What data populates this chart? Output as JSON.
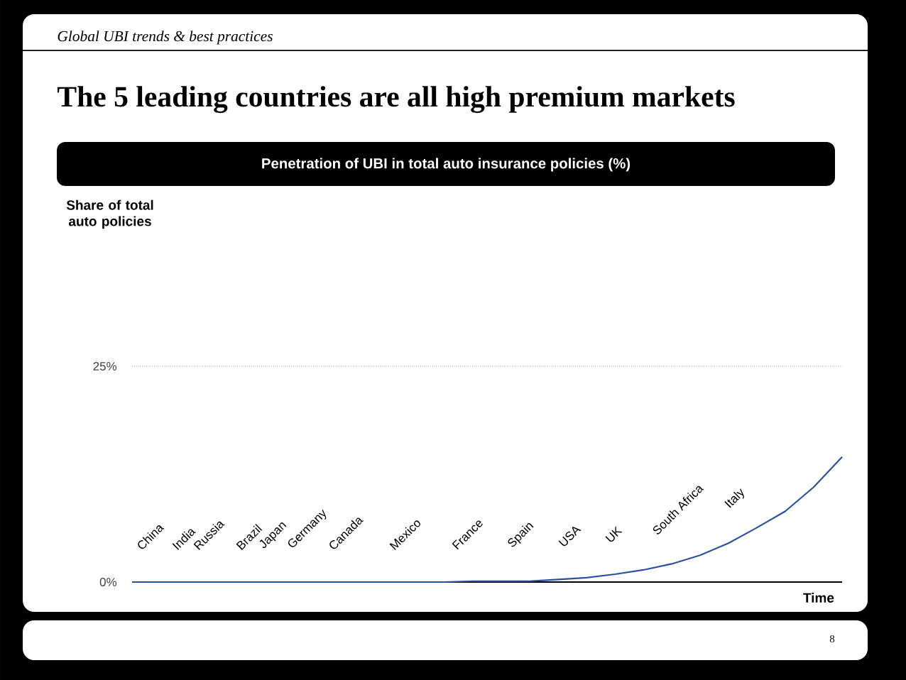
{
  "chart_data": {
    "type": "line",
    "title": "The 5 leading countries are all high premium markets",
    "subtitle": "Penetration of UBI in total auto insurance policies (%)",
    "xlabel": "Time",
    "categories": [
      null,
      null,
      null,
      null,
      null,
      null,
      null,
      null,
      null,
      null,
      null,
      null,
      null,
      null,
      null,
      null,
      null,
      null,
      null,
      null,
      null,
      null,
      null,
      null,
      null,
      null
    ],
    "series": [
      {
        "color": "#2b50a3",
        "values": [
          0,
          0,
          0,
          0,
          0,
          0,
          0,
          0,
          0,
          0,
          0,
          0,
          0.1,
          0.1,
          0.1,
          0.3,
          0.5,
          0.9,
          1.4,
          2.1,
          3.1,
          4.5,
          6.3,
          8.2,
          11,
          14.5
        ]
      }
    ],
    "ylim": [
      0,
      25
    ],
    "yticks": [
      {
        "value": 0,
        "label": "0%"
      },
      {
        "value": 25,
        "label": "25%"
      }
    ],
    "grid": "y",
    "annotations": [
      "Global UBI trends & best practices",
      "Share of total auto policies",
      "China",
      "India",
      "Russia",
      "Brazil",
      "Japan",
      "Germany",
      "Canada",
      "Mexico",
      "France",
      "Spain",
      "USA",
      "UK",
      "South Africa",
      "Italy",
      "8"
    ]
  }
}
